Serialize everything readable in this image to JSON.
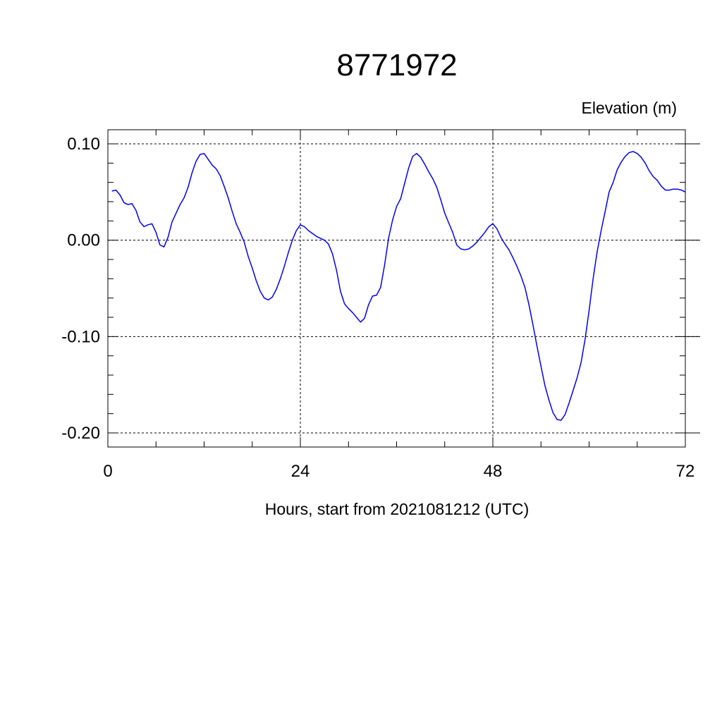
{
  "chart_data": {
    "type": "line",
    "title": "8771972",
    "ylabel": "Elevation (m)",
    "xlabel": "Hours, start from 2021081212 (UTC)",
    "xlim": [
      0,
      72
    ],
    "ylim": [
      -0.2,
      0.1
    ],
    "xticks": [
      0,
      24,
      48,
      72
    ],
    "xtick_labels": [
      "0",
      "24",
      "48",
      "72"
    ],
    "yticks": [
      0.1,
      0.0,
      -0.1,
      -0.2
    ],
    "ytick_labels": [
      "0.10",
      "0.00",
      "-0.10",
      "-0.20"
    ],
    "grid": true,
    "line_color": "#0000ff",
    "series": [
      {
        "x": [
          0.5,
          1.0,
          1.5,
          2.0,
          2.5,
          3.0,
          3.5,
          4.0,
          4.5,
          5.0,
          5.5,
          6.0,
          6.5,
          7.0,
          7.5,
          8.0,
          8.5,
          9.0,
          9.5,
          10.0,
          10.5,
          11.0,
          11.5,
          12.0,
          12.5,
          13.0,
          13.5,
          14.0,
          14.5,
          15.0,
          15.5,
          16.0,
          16.5,
          17.0,
          17.5,
          18.0,
          18.5,
          19.0,
          19.5,
          20.0,
          20.5,
          21.0,
          21.5,
          22.0,
          22.5,
          23.0,
          23.5,
          24.0,
          24.5,
          25.0,
          25.5,
          26.0,
          26.5,
          27.0,
          27.5,
          28.0,
          28.5,
          29.0,
          29.5,
          30.0,
          30.5,
          31.0,
          31.5,
          32.0,
          32.5,
          33.0,
          33.5,
          34.0,
          34.5,
          35.0,
          35.5,
          36.0,
          36.5,
          37.0,
          37.5,
          38.0,
          38.5,
          39.0,
          39.5,
          40.0,
          40.5,
          41.0,
          41.5,
          42.0,
          42.5,
          43.0,
          43.5,
          44.0,
          44.5,
          45.0,
          45.5,
          46.0,
          46.5,
          47.0,
          47.5,
          48.0,
          48.5,
          49.0,
          49.5,
          50.0,
          50.5,
          51.0,
          51.5,
          52.0,
          52.5,
          53.0,
          53.5,
          54.0,
          54.5,
          55.0,
          55.5,
          56.0,
          56.5,
          57.0,
          57.5,
          58.0,
          58.5,
          59.0,
          59.5,
          60.0,
          60.5,
          61.0,
          61.5,
          62.0,
          62.5,
          63.0,
          63.5,
          64.0,
          64.5,
          65.0,
          65.5,
          66.0,
          66.5,
          67.0,
          67.5,
          68.0,
          68.5,
          69.0,
          69.5,
          70.0,
          70.5,
          71.0,
          71.5,
          72.0
        ],
        "y": [
          0.051,
          0.052,
          0.047,
          0.039,
          0.037,
          0.038,
          0.031,
          0.019,
          0.014,
          0.016,
          0.017,
          0.008,
          -0.005,
          -0.007,
          0.003,
          0.019,
          0.028,
          0.037,
          0.044,
          0.055,
          0.07,
          0.082,
          0.089,
          0.09,
          0.084,
          0.078,
          0.074,
          0.067,
          0.056,
          0.044,
          0.03,
          0.017,
          0.008,
          -0.002,
          -0.017,
          -0.029,
          -0.042,
          -0.053,
          -0.06,
          -0.062,
          -0.059,
          -0.051,
          -0.04,
          -0.027,
          -0.013,
          0.0,
          0.01,
          0.016,
          0.014,
          0.01,
          0.007,
          0.004,
          0.002,
          0.0,
          -0.004,
          -0.014,
          -0.031,
          -0.053,
          -0.066,
          -0.071,
          -0.075,
          -0.08,
          -0.085,
          -0.081,
          -0.067,
          -0.058,
          -0.057,
          -0.049,
          -0.026,
          0.002,
          0.021,
          0.035,
          0.043,
          0.059,
          0.075,
          0.087,
          0.09,
          0.086,
          0.079,
          0.071,
          0.064,
          0.055,
          0.042,
          0.028,
          0.018,
          0.008,
          -0.005,
          -0.009,
          -0.01,
          -0.009,
          -0.006,
          -0.002,
          0.003,
          0.008,
          0.014,
          0.017,
          0.012,
          0.003,
          -0.004,
          -0.01,
          -0.018,
          -0.027,
          -0.037,
          -0.049,
          -0.067,
          -0.088,
          -0.11,
          -0.131,
          -0.151,
          -0.166,
          -0.179,
          -0.186,
          -0.187,
          -0.181,
          -0.169,
          -0.156,
          -0.143,
          -0.127,
          -0.103,
          -0.073,
          -0.04,
          -0.012,
          0.01,
          0.03,
          0.05,
          0.06,
          0.073,
          0.081,
          0.087,
          0.091,
          0.092,
          0.09,
          0.086,
          0.08,
          0.072,
          0.066,
          0.062,
          0.056,
          0.052,
          0.052,
          0.053,
          0.053,
          0.052,
          0.05
        ]
      }
    ]
  }
}
